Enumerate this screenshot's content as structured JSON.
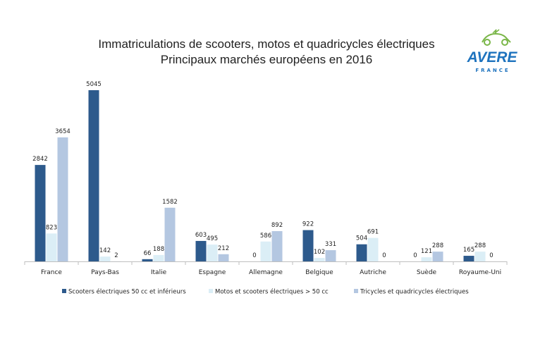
{
  "logo": {
    "brand": "AVERE",
    "sub": "FRANCE",
    "colors": {
      "blue": "#1e73be",
      "green": "#7ab648"
    }
  },
  "chart_data": {
    "type": "bar",
    "title": "Immatriculations de scooters, motos et quadricycles électriques",
    "subtitle": "Principaux marchés européens en 2016",
    "xlabel": "",
    "ylabel": "",
    "ylim": [
      0,
      5500
    ],
    "grid": false,
    "legend_position": "bottom",
    "categories": [
      "France",
      "Pays-Bas",
      "Italie",
      "Espagne",
      "Allemagne",
      "Belgique",
      "Autriche",
      "Suède",
      "Royaume-Uni"
    ],
    "series": [
      {
        "name": "Scooters électriques 50 cc et inférieurs",
        "color": "#2d5a8c",
        "values": [
          2842,
          5045,
          66,
          603,
          0,
          922,
          504,
          0,
          165
        ]
      },
      {
        "name": "Motos et scooters électriques > 50 cc",
        "color": "#dbeef6",
        "values": [
          823,
          142,
          188,
          495,
          586,
          102,
          691,
          121,
          288
        ]
      },
      {
        "name": "Tricycles et quadricycles  électriques",
        "color": "#b4c7e1",
        "values": [
          3654,
          2,
          1582,
          212,
          892,
          331,
          0,
          288,
          0
        ]
      }
    ]
  }
}
